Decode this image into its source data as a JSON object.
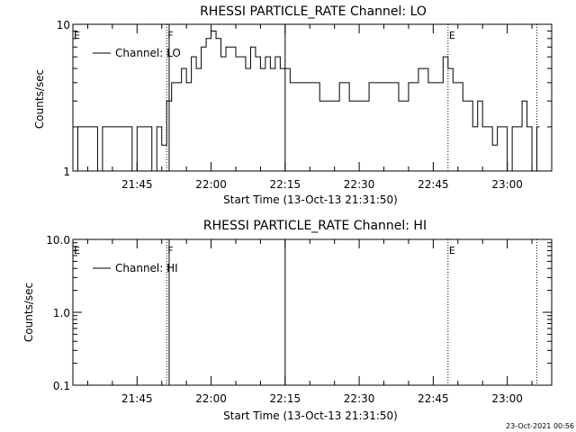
{
  "timestamp": "23-Oct-2021 00:56",
  "chart_data": [
    {
      "type": "line",
      "title": "RHESSI PARTICLE_RATE Channel: LO",
      "xlabel": "Start Time (13-Oct-13 21:31:50)",
      "ylabel": "Counts/sec",
      "yscale": "log",
      "ylim": [
        1,
        10
      ],
      "ytick_labels": [
        "1",
        "10"
      ],
      "xlim": [
        "21:32",
        "23:09"
      ],
      "xtick_labels": [
        "21:45",
        "22:00",
        "22:15",
        "22:30",
        "22:45",
        "23:00"
      ],
      "legend": {
        "label": "Channel: LO",
        "position": "top-left"
      },
      "vlines": [
        {
          "label": "E",
          "time": "21:32",
          "style": "dotted"
        },
        {
          "label": "F",
          "time": "21:51",
          "style": "dotted"
        },
        {
          "label": "",
          "time": "21:51.5",
          "style": "solid"
        },
        {
          "label": "",
          "time": "22:15",
          "style": "solid"
        },
        {
          "label": "E",
          "time": "22:48",
          "style": "dotted"
        },
        {
          "label": "",
          "time": "23:06",
          "style": "dotted"
        }
      ],
      "series": [
        {
          "name": "Channel: LO",
          "x": [
            "21:32",
            "21:33",
            "21:35",
            "21:37",
            "21:38",
            "21:40",
            "21:42",
            "21:44",
            "21:45",
            "21:47",
            "21:48",
            "21:49",
            "21:50",
            "21:51",
            "21:52",
            "21:53",
            "21:54",
            "21:55",
            "21:56",
            "21:57",
            "21:58",
            "21:59",
            "22:00",
            "22:01",
            "22:02",
            "22:03",
            "22:04",
            "22:05",
            "22:06",
            "22:07",
            "22:08",
            "22:09",
            "22:10",
            "22:11",
            "22:12",
            "22:13",
            "22:14",
            "22:16",
            "22:18",
            "22:20",
            "22:22",
            "22:24",
            "22:26",
            "22:28",
            "22:30",
            "22:32",
            "22:34",
            "22:36",
            "22:38",
            "22:40",
            "22:42",
            "22:44",
            "22:46",
            "22:47",
            "22:48",
            "22:49",
            "22:50",
            "22:51",
            "22:52",
            "22:53",
            "22:54",
            "22:55",
            "22:56",
            "22:57",
            "22:58",
            "22:59",
            "23:00",
            "23:01",
            "23:02",
            "23:03",
            "23:04",
            "23:05",
            "23:06"
          ],
          "y": [
            1,
            2,
            2,
            1,
            2,
            2,
            2,
            1,
            2,
            2,
            1,
            2,
            1.5,
            3,
            4,
            4,
            5,
            4,
            6,
            5,
            7,
            8,
            9,
            8,
            6,
            7,
            7,
            6,
            6,
            5,
            7,
            6,
            5,
            6,
            5,
            6,
            5,
            4,
            4,
            4,
            3,
            3,
            4,
            3,
            3,
            4,
            4,
            4,
            3,
            4,
            5,
            4,
            4,
            6,
            5,
            4,
            4,
            3,
            3,
            2,
            3,
            2,
            2,
            1.5,
            2,
            2,
            1,
            2,
            2,
            3,
            2,
            1,
            2
          ]
        }
      ]
    },
    {
      "type": "line",
      "title": "RHESSI PARTICLE_RATE Channel: HI",
      "xlabel": "Start Time (13-Oct-13 21:31:50)",
      "ylabel": "Counts/sec",
      "yscale": "log",
      "ylim": [
        0.1,
        10
      ],
      "ytick_labels": [
        "0.1",
        "1.0",
        "10.0"
      ],
      "xlim": [
        "21:32",
        "23:09"
      ],
      "xtick_labels": [
        "21:45",
        "22:00",
        "22:15",
        "22:30",
        "22:45",
        "23:00"
      ],
      "legend": {
        "label": "Channel: HI",
        "position": "top-left"
      },
      "vlines": [
        {
          "label": "E",
          "time": "21:32",
          "style": "dotted"
        },
        {
          "label": "F",
          "time": "21:51",
          "style": "dotted"
        },
        {
          "label": "",
          "time": "21:51.5",
          "style": "solid"
        },
        {
          "label": "",
          "time": "22:15",
          "style": "solid"
        },
        {
          "label": "E",
          "time": "22:48",
          "style": "dotted"
        },
        {
          "label": "",
          "time": "23:06",
          "style": "dotted"
        }
      ],
      "series": [
        {
          "name": "Channel: HI",
          "x": [],
          "y": []
        }
      ]
    }
  ]
}
